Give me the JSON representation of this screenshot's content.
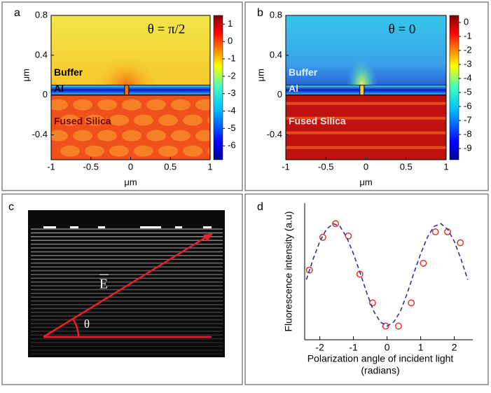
{
  "chart_data": [
    {
      "type": "heatmap",
      "panel_label": "a",
      "annotation": "θ = π/2",
      "region_labels": [
        "Buffer",
        "Al",
        "Fused Silica"
      ],
      "xlabel": "μm",
      "ylabel": "μm",
      "xlim": [
        -1,
        1
      ],
      "xticks": [
        -1,
        -0.5,
        0,
        0.5,
        1
      ],
      "ylim": [
        -0.65,
        0.8
      ],
      "yticks": [
        0.8,
        0.4,
        0,
        -0.4
      ],
      "colorbar": {
        "lim": [
          -6.8,
          1.5
        ],
        "ticks": [
          1,
          0,
          -1,
          -2,
          -3,
          -4,
          -5,
          -6
        ]
      }
    },
    {
      "type": "heatmap",
      "panel_label": "b",
      "annotation": "θ = 0",
      "region_labels": [
        "Buffer",
        "Al",
        "Fused Silica"
      ],
      "xlabel": "μm",
      "ylabel": "μm",
      "xlim": [
        -1,
        1
      ],
      "xticks": [
        -1,
        -0.5,
        0,
        0.5,
        1
      ],
      "ylim": [
        -0.65,
        0.8
      ],
      "yticks": [
        0.8,
        0.4,
        0,
        -0.4
      ],
      "colorbar": {
        "lim": [
          -9.8,
          0.5
        ],
        "ticks": [
          0,
          -1,
          -2,
          -3,
          -4,
          -5,
          -6,
          -7,
          -8,
          -9
        ]
      }
    },
    {
      "type": "image",
      "panel_label": "c",
      "vector_label": "E",
      "angle_label": "θ"
    },
    {
      "type": "scatter",
      "panel_label": "d",
      "ylabel": "Fluorescence intensity (a.u)",
      "xlabel": [
        "Polarization angle of incident light",
        "(radians)"
      ],
      "xlim": [
        -2.45,
        2.55
      ],
      "xticks": [
        -2,
        -1,
        0,
        1,
        2
      ],
      "ylim": [
        0,
        1
      ],
      "series": [
        {
          "color": "#e8322a",
          "x": [
            -2.31,
            -1.91,
            -1.53,
            -1.15,
            -0.81,
            -0.43,
            -0.04,
            0.34,
            0.72,
            1.08,
            1.44,
            1.8,
            2.18
          ],
          "values": [
            0.51,
            0.75,
            0.85,
            0.76,
            0.48,
            0.27,
            0.1,
            0.1,
            0.27,
            0.56,
            0.79,
            0.79,
            0.71
          ]
        },
        {
          "color": "#2a3590",
          "style": "dashed",
          "x": [
            -2.4,
            -2.2,
            -2.0,
            -1.8,
            -1.6,
            -1.4,
            -1.2,
            -1.0,
            -0.8,
            -0.6,
            -0.4,
            -0.2,
            0,
            0.2,
            0.4,
            0.6,
            0.8,
            1.0,
            1.2,
            1.4,
            1.6,
            1.8,
            2.0,
            2.2,
            2.4
          ],
          "values": [
            0.44,
            0.59,
            0.72,
            0.81,
            0.85,
            0.83,
            0.75,
            0.63,
            0.49,
            0.34,
            0.21,
            0.13,
            0.1,
            0.13,
            0.21,
            0.34,
            0.49,
            0.63,
            0.75,
            0.83,
            0.85,
            0.81,
            0.72,
            0.59,
            0.44
          ]
        }
      ]
    }
  ]
}
